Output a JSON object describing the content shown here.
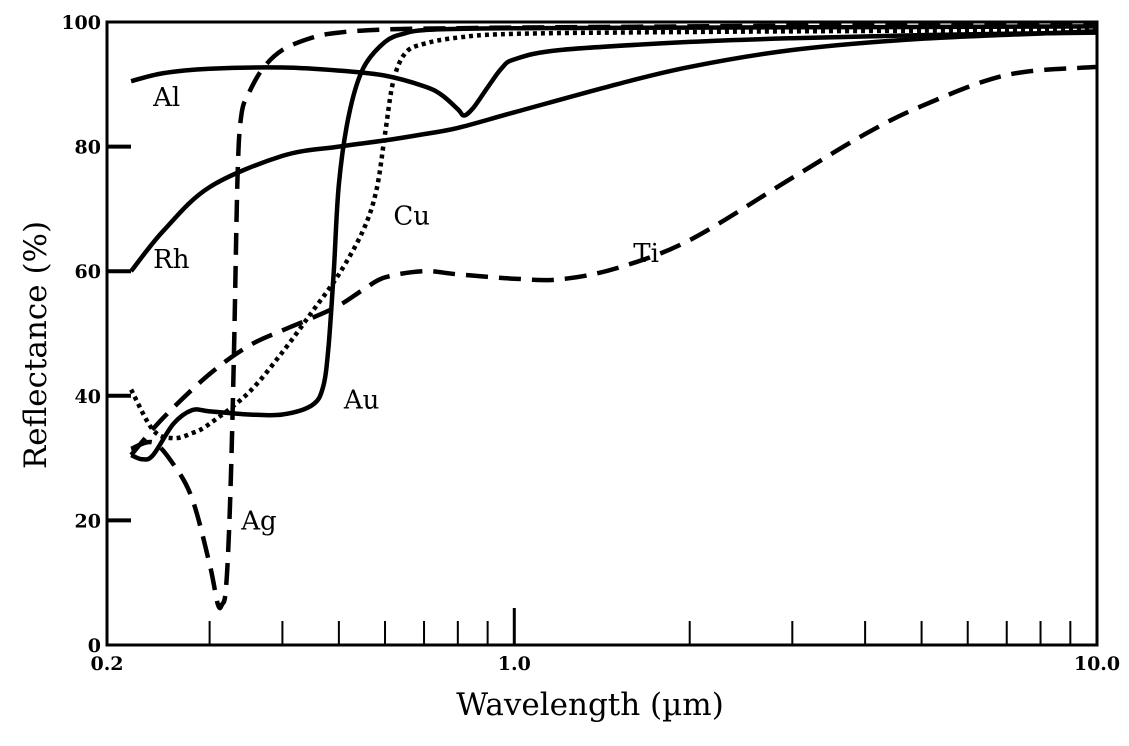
{
  "chart_data": {
    "type": "line",
    "title": "",
    "xlabel": "Wavelength (µm)",
    "ylabel": "Reflectance (%)",
    "x_scale": "log",
    "xlim": [
      0.2,
      10.0
    ],
    "ylim": [
      0,
      100
    ],
    "x_tick_labels": [
      {
        "value": 0.2,
        "label": "0.2"
      },
      {
        "value": 1.0,
        "label": "1.0"
      },
      {
        "value": 10.0,
        "label": "10.0"
      }
    ],
    "x_minor_ticks": [
      0.3,
      0.4,
      0.5,
      0.6,
      0.7,
      0.8,
      0.9,
      2,
      3,
      4,
      5,
      6,
      7,
      8,
      9
    ],
    "y_ticks": [
      {
        "value": 0,
        "label": "0"
      },
      {
        "value": 20,
        "label": "20"
      },
      {
        "value": 40,
        "label": "40"
      },
      {
        "value": 60,
        "label": "60"
      },
      {
        "value": 80,
        "label": "80"
      },
      {
        "value": 100,
        "label": "100"
      }
    ],
    "grid": false,
    "legend": "none (inline labels)",
    "series": [
      {
        "name": "Al",
        "style": "solid",
        "x": [
          0.22,
          0.25,
          0.3,
          0.4,
          0.5,
          0.6,
          0.7,
          0.75,
          0.8,
          0.82,
          0.85,
          0.9,
          0.95,
          1.0,
          1.2,
          2,
          3,
          5,
          10
        ],
        "y": [
          90.5,
          91.8,
          92.5,
          92.7,
          92.2,
          91.4,
          89.7,
          88.3,
          86.0,
          85.0,
          86.2,
          89.5,
          92.5,
          94.0,
          95.5,
          96.8,
          97.4,
          97.9,
          98.3
        ]
      },
      {
        "name": "Rh",
        "style": "solid",
        "x": [
          0.22,
          0.25,
          0.3,
          0.4,
          0.5,
          0.6,
          0.7,
          0.8,
          1.0,
          1.5,
          2,
          3,
          5,
          10
        ],
        "y": [
          60.0,
          66.5,
          73.5,
          78.5,
          80.0,
          81.0,
          82.0,
          83.0,
          85.5,
          90.0,
          92.8,
          95.5,
          97.3,
          98.5
        ]
      },
      {
        "name": "Cu",
        "style": "dotted",
        "x": [
          0.22,
          0.24,
          0.26,
          0.28,
          0.3,
          0.35,
          0.4,
          0.45,
          0.5,
          0.55,
          0.58,
          0.6,
          0.62,
          0.65,
          0.7,
          0.8,
          1.0,
          2,
          5,
          10
        ],
        "y": [
          41.0,
          34.5,
          33.2,
          34.0,
          35.5,
          40.5,
          47.0,
          53.5,
          59.5,
          66.5,
          73.0,
          82.0,
          90.5,
          95.0,
          96.5,
          97.5,
          98.1,
          98.4,
          98.6,
          98.8
        ]
      },
      {
        "name": "Ti",
        "style": "dashed",
        "x": [
          0.22,
          0.25,
          0.3,
          0.35,
          0.4,
          0.45,
          0.5,
          0.55,
          0.6,
          0.7,
          0.8,
          1.0,
          1.2,
          1.5,
          2,
          3,
          4,
          5,
          7,
          10
        ],
        "y": [
          30.5,
          36.5,
          43.5,
          48.0,
          50.5,
          52.5,
          54.5,
          57.0,
          59.0,
          60.0,
          59.5,
          58.8,
          58.7,
          60.5,
          65.0,
          75.0,
          82.0,
          86.5,
          91.5,
          92.8
        ]
      },
      {
        "name": "Au",
        "style": "solid",
        "x": [
          0.22,
          0.23,
          0.24,
          0.26,
          0.28,
          0.3,
          0.35,
          0.4,
          0.45,
          0.47,
          0.48,
          0.49,
          0.5,
          0.52,
          0.55,
          0.6,
          0.65,
          0.7,
          0.8,
          1.0,
          2,
          5,
          10
        ],
        "y": [
          30.5,
          29.8,
          30.5,
          35.5,
          37.7,
          37.5,
          37.0,
          37.0,
          38.5,
          41.5,
          48.0,
          60.0,
          74.0,
          85.0,
          92.5,
          96.8,
          98.2,
          98.7,
          98.9,
          99.0,
          99.1,
          99.2,
          99.3
        ]
      },
      {
        "name": "Ag",
        "style": "dashed",
        "x": [
          0.22,
          0.24,
          0.26,
          0.28,
          0.3,
          0.31,
          0.315,
          0.32,
          0.325,
          0.33,
          0.335,
          0.34,
          0.35,
          0.37,
          0.4,
          0.45,
          0.5,
          0.6,
          0.8,
          1.0,
          2,
          5,
          10
        ],
        "y": [
          31.5,
          32.5,
          29.0,
          23.5,
          13.0,
          6.5,
          6.5,
          9.0,
          22.0,
          45.0,
          75.0,
          85.0,
          88.5,
          92.5,
          95.5,
          97.5,
          98.3,
          98.8,
          99.0,
          99.1,
          99.3,
          99.5,
          99.6
        ]
      }
    ],
    "labels": [
      {
        "text": "Al",
        "x": 0.24,
        "y": 86.5
      },
      {
        "text": "Rh",
        "x": 0.24,
        "y": 60.5
      },
      {
        "text": "Cu",
        "x": 0.62,
        "y": 67.5
      },
      {
        "text": "Ti",
        "x": 1.6,
        "y": 61.5
      },
      {
        "text": "Au",
        "x": 0.51,
        "y": 38.0
      },
      {
        "text": "Ag",
        "x": 0.34,
        "y": 18.5
      }
    ]
  }
}
